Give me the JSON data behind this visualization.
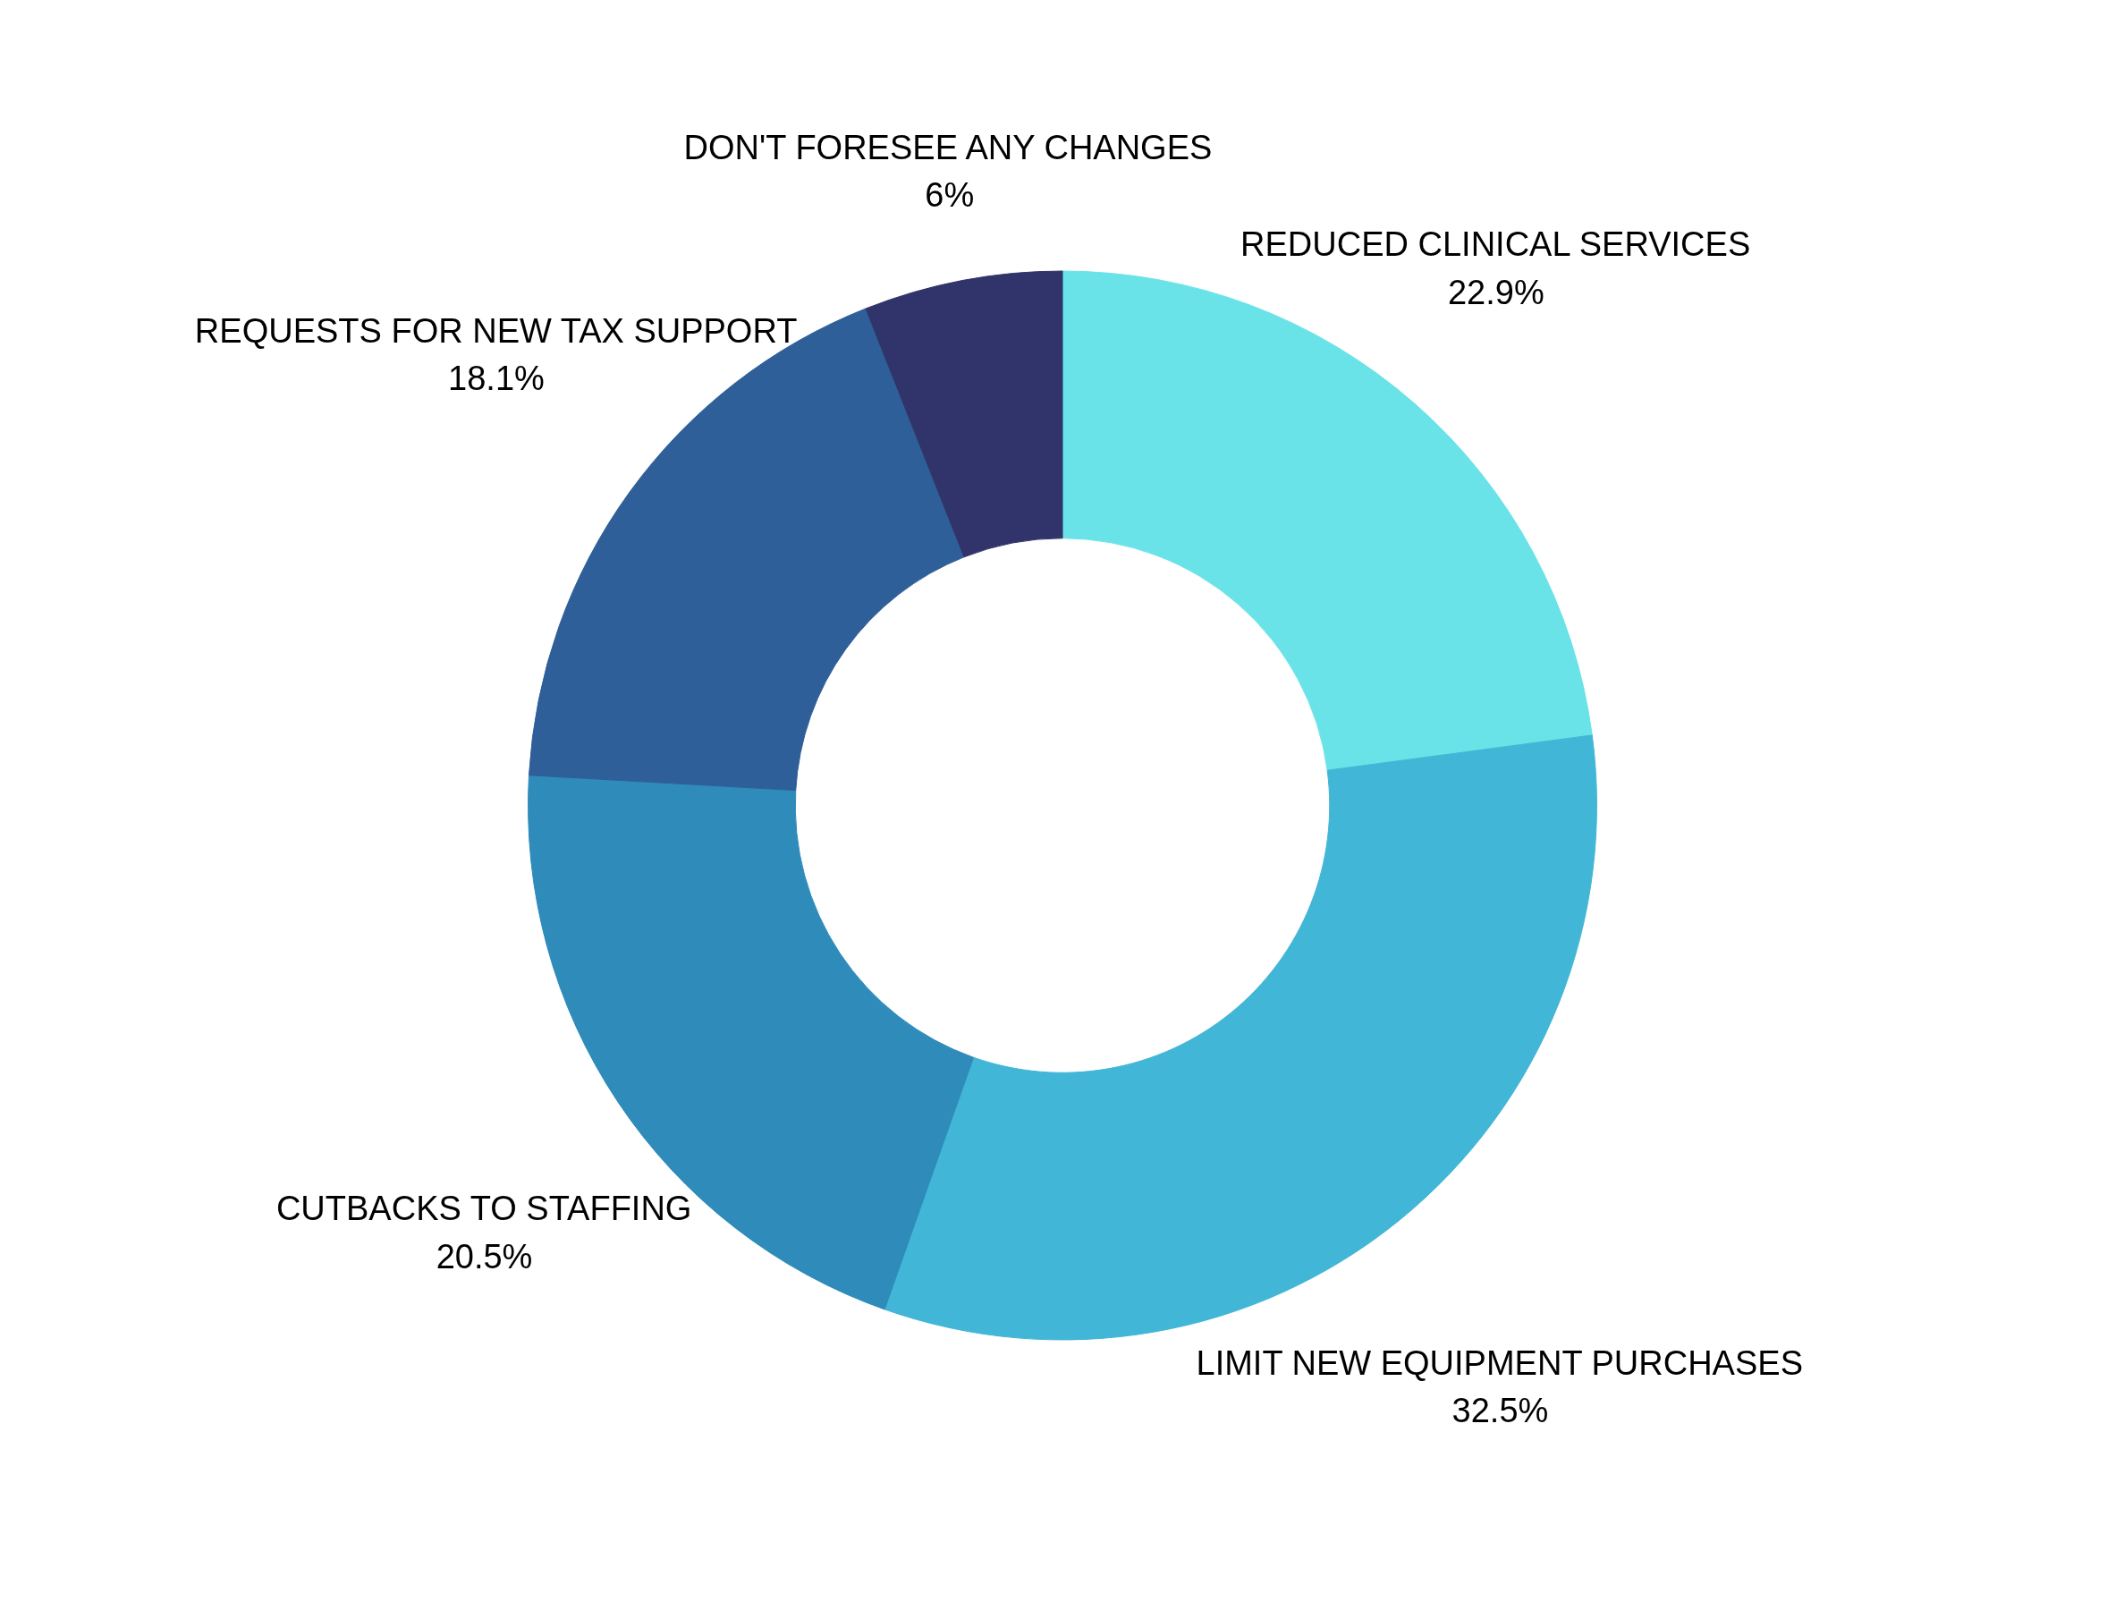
{
  "chart_data": {
    "type": "donut",
    "categories": [
      "REDUCED CLINICAL SERVICES",
      "LIMIT NEW EQUIPMENT PURCHASES",
      "CUTBACKS TO STAFFING",
      "REQUESTS FOR NEW TAX SUPPORT",
      "DON'T FORESEE ANY CHANGES"
    ],
    "values": [
      22.9,
      32.5,
      20.5,
      18.1,
      6
    ],
    "value_labels": [
      "22.9%",
      "32.5%",
      "20.5%",
      "18.1%",
      "6%"
    ],
    "colors": [
      "#6ae3e8",
      "#42b6d6",
      "#2e8bba",
      "#2f5f98",
      "#30346a"
    ],
    "legend": false
  }
}
